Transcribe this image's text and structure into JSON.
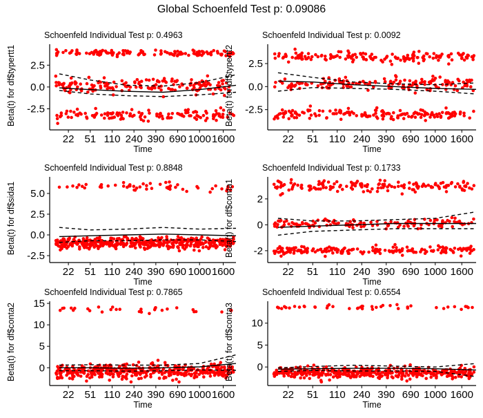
{
  "figure_title": "Global Schoenfeld Test p: 0.09086",
  "colors": {
    "points": "#ff0000",
    "fit_line": "#000000",
    "band_line": "#000000",
    "axis": "#000000"
  },
  "chart_data": [
    {
      "type": "scatter",
      "title": "Schoenfeld Individual Test p: 0.4963",
      "xlabel": "Time",
      "ylabel": "Beta(t) for df$typertt1",
      "x_ticks": [
        "22",
        "51",
        "110",
        "240",
        "390",
        "690",
        "1000",
        "1600"
      ],
      "y_ticks": [
        -2.5,
        0.0,
        2.5
      ],
      "y_tick_labels": [
        "-2.5",
        "0.0",
        "2.5"
      ],
      "ylim": [
        -4.6,
        4.9
      ],
      "x_scale": "transformed time (km)",
      "point_bands": [
        {
          "center": 3.9,
          "spread": 0.5,
          "count": 130
        },
        {
          "center": -3.2,
          "spread": 0.8,
          "count": 130
        },
        {
          "center": 0.1,
          "spread": 1.2,
          "count": 170
        }
      ],
      "fit": [
        [
          0.03,
          -0.1
        ],
        [
          0.2,
          -0.3
        ],
        [
          0.4,
          -0.5
        ],
        [
          0.6,
          -0.6
        ],
        [
          0.8,
          -0.3
        ],
        [
          1.0,
          0.2
        ]
      ],
      "upper_band": [
        [
          0.03,
          1.5
        ],
        [
          0.2,
          0.8
        ],
        [
          0.4,
          0.2
        ],
        [
          0.6,
          0.1
        ],
        [
          0.8,
          0.5
        ],
        [
          1.0,
          1.4
        ]
      ],
      "lower_band": [
        [
          0.03,
          -0.4
        ],
        [
          0.2,
          -0.8
        ],
        [
          0.4,
          -1.0
        ],
        [
          0.6,
          -1.1
        ],
        [
          0.8,
          -0.9
        ],
        [
          1.0,
          -0.6
        ]
      ]
    },
    {
      "type": "scatter",
      "title": "Schoenfeld Individual Test p: 0.0092",
      "xlabel": "Time",
      "ylabel": "Beta(t) for df$typertt2",
      "x_ticks": [
        "22",
        "51",
        "110",
        "240",
        "390",
        "690",
        "1000",
        "1600"
      ],
      "y_ticks": [
        -2.5,
        0.0,
        2.5
      ],
      "y_tick_labels": [
        "-2.5",
        "0.0",
        "2.5"
      ],
      "ylim": [
        -4.4,
        4.6
      ],
      "x_scale": "transformed time (km)",
      "point_bands": [
        {
          "center": 3.2,
          "spread": 0.8,
          "count": 160
        },
        {
          "center": -3.0,
          "spread": 0.8,
          "count": 160
        },
        {
          "center": 0.3,
          "spread": 1.0,
          "count": 160
        }
      ],
      "fit": [
        [
          0.03,
          0.6
        ],
        [
          0.2,
          0.5
        ],
        [
          0.4,
          0.2
        ],
        [
          0.6,
          0.0
        ],
        [
          0.8,
          -0.2
        ],
        [
          1.0,
          -0.3
        ]
      ],
      "upper_band": [
        [
          0.03,
          1.5
        ],
        [
          0.2,
          1.0
        ],
        [
          0.4,
          0.5
        ],
        [
          0.6,
          0.3
        ],
        [
          0.8,
          0.2
        ],
        [
          1.0,
          0.4
        ]
      ],
      "lower_band": [
        [
          0.03,
          -0.5
        ],
        [
          0.2,
          -0.1
        ],
        [
          0.4,
          -0.2
        ],
        [
          0.6,
          -0.3
        ],
        [
          0.8,
          -0.5
        ],
        [
          1.0,
          -0.8
        ]
      ]
    },
    {
      "type": "scatter",
      "title": "Schoenfeld Individual Test p: 0.8848",
      "xlabel": "Time",
      "ylabel": "Beta(t) for df$sida1",
      "x_ticks": [
        "22",
        "51",
        "110",
        "240",
        "390",
        "690",
        "1000",
        "1600"
      ],
      "y_ticks": [
        -2.5,
        0.0,
        2.5,
        5.0
      ],
      "y_tick_labels": [
        "-2.5",
        "0.0",
        "2.5",
        "5.0"
      ],
      "ylim": [
        -3.0,
        7.0
      ],
      "x_scale": "transformed time (km)",
      "point_bands": [
        {
          "center": 5.8,
          "spread": 0.7,
          "count": 55
        },
        {
          "center": -1.0,
          "spread": 1.0,
          "count": 420
        }
      ],
      "fit": [
        [
          0.03,
          -0.2
        ],
        [
          0.2,
          -0.1
        ],
        [
          0.4,
          0.0
        ],
        [
          0.6,
          0.1
        ],
        [
          0.8,
          0.0
        ],
        [
          1.0,
          -0.1
        ]
      ],
      "upper_band": [
        [
          0.03,
          0.9
        ],
        [
          0.2,
          0.6
        ],
        [
          0.4,
          0.7
        ],
        [
          0.6,
          0.9
        ],
        [
          0.8,
          0.7
        ],
        [
          1.0,
          0.8
        ]
      ],
      "lower_band": [
        [
          0.03,
          -0.9
        ],
        [
          0.2,
          -0.7
        ],
        [
          0.4,
          -0.7
        ],
        [
          0.6,
          -0.6
        ],
        [
          0.8,
          -0.6
        ],
        [
          1.0,
          -0.8
        ]
      ]
    },
    {
      "type": "scatter",
      "title": "Schoenfeld Individual Test p: 0.1733",
      "xlabel": "Time",
      "ylabel": "Beta(t) for df$conta1",
      "x_ticks": [
        "22",
        "51",
        "110",
        "240",
        "390",
        "690",
        "1000",
        "1600"
      ],
      "y_ticks": [
        -2,
        0,
        2
      ],
      "y_tick_labels": [
        "-2",
        "0",
        "2"
      ],
      "ylim": [
        -2.7,
        3.7
      ],
      "x_scale": "transformed time (km)",
      "point_bands": [
        {
          "center": 3.0,
          "spread": 0.6,
          "count": 150
        },
        {
          "center": 0.1,
          "spread": 0.5,
          "count": 130
        },
        {
          "center": -2.0,
          "spread": 0.5,
          "count": 180
        }
      ],
      "fit": [
        [
          0.03,
          -0.2
        ],
        [
          0.2,
          -0.1
        ],
        [
          0.4,
          0.0
        ],
        [
          0.6,
          0.1
        ],
        [
          0.8,
          0.1
        ],
        [
          1.0,
          0.1
        ]
      ],
      "upper_band": [
        [
          0.03,
          0.5
        ],
        [
          0.2,
          0.3
        ],
        [
          0.4,
          0.3
        ],
        [
          0.6,
          0.4
        ],
        [
          0.8,
          0.5
        ],
        [
          1.0,
          1.0
        ]
      ],
      "lower_band": [
        [
          0.03,
          -0.8
        ],
        [
          0.2,
          -0.5
        ],
        [
          0.4,
          -0.4
        ],
        [
          0.6,
          -0.3
        ],
        [
          0.8,
          -0.3
        ],
        [
          1.0,
          -0.3
        ]
      ]
    },
    {
      "type": "scatter",
      "title": "Schoenfeld Individual Test p: 0.7865",
      "xlabel": "Time",
      "ylabel": "Beta(t) for df$conta2",
      "x_ticks": [
        "22",
        "51",
        "110",
        "240",
        "390",
        "690",
        "1000",
        "1600"
      ],
      "y_ticks": [
        0,
        5,
        10,
        15
      ],
      "y_tick_labels": [
        "0",
        "5",
        "10",
        "15"
      ],
      "ylim": [
        -3.5,
        15.5
      ],
      "x_scale": "transformed time (km)",
      "point_bands": [
        {
          "center": 13.5,
          "spread": 1.2,
          "count": 30
        },
        {
          "center": -0.9,
          "spread": 2.4,
          "count": 440
        }
      ],
      "fit": [
        [
          0.03,
          0.0
        ],
        [
          0.2,
          0.0
        ],
        [
          0.4,
          -0.1
        ],
        [
          0.6,
          0.0
        ],
        [
          0.8,
          0.2
        ],
        [
          1.0,
          1.0
        ]
      ],
      "upper_band": [
        [
          0.03,
          0.6
        ],
        [
          0.2,
          0.7
        ],
        [
          0.4,
          0.6
        ],
        [
          0.6,
          0.6
        ],
        [
          0.8,
          1.0
        ],
        [
          1.0,
          3.0
        ]
      ],
      "lower_band": [
        [
          0.03,
          -0.7
        ],
        [
          0.2,
          -0.7
        ],
        [
          0.4,
          -0.8
        ],
        [
          0.6,
          -0.7
        ],
        [
          0.8,
          -0.5
        ],
        [
          1.0,
          -0.6
        ]
      ]
    },
    {
      "type": "scatter",
      "title": "Schoenfeld Individual Test p: 0.6554",
      "xlabel": "Time",
      "ylabel": "Beta(t) for df$conta3",
      "x_ticks": [
        "22",
        "51",
        "110",
        "240",
        "390",
        "690",
        "1000",
        "1600"
      ],
      "y_ticks": [
        0,
        5,
        10
      ],
      "y_tick_labels": [
        "0",
        "5",
        "10"
      ],
      "ylim": [
        -3.6,
        15.0
      ],
      "x_scale": "transformed time (km)",
      "point_bands": [
        {
          "center": 13.7,
          "spread": 0.6,
          "count": 45
        },
        {
          "center": -1.3,
          "spread": 1.8,
          "count": 440
        }
      ],
      "fit": [
        [
          0.03,
          -0.5
        ],
        [
          0.2,
          -0.4
        ],
        [
          0.4,
          -0.3
        ],
        [
          0.6,
          -0.3
        ],
        [
          0.8,
          -0.4
        ],
        [
          1.0,
          -0.7
        ]
      ],
      "upper_band": [
        [
          0.03,
          -0.2
        ],
        [
          0.2,
          0.1
        ],
        [
          0.4,
          0.4
        ],
        [
          0.6,
          0.2
        ],
        [
          0.8,
          0.0
        ],
        [
          1.0,
          0.8
        ]
      ],
      "lower_band": [
        [
          0.03,
          -1.0
        ],
        [
          0.2,
          -0.8
        ],
        [
          0.4,
          -0.9
        ],
        [
          0.6,
          -0.9
        ],
        [
          0.8,
          -1.0
        ],
        [
          1.0,
          -2.2
        ]
      ]
    }
  ]
}
